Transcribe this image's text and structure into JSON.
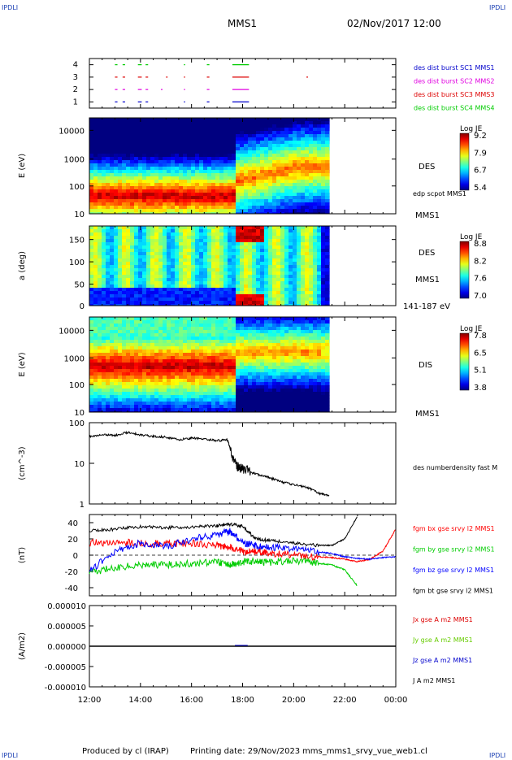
{
  "corner_label": "IPDLI",
  "header": {
    "spacecraft": "MMS1",
    "datetime": "02/Nov/2017 12:00"
  },
  "footer": {
    "produced_by": "Produced by cl (IRAP)",
    "printing_date": "Printing date: 29/Nov/2023",
    "product": "mms_mms1_srvy_vue_web1.cl"
  },
  "time_axis": {
    "ticks": [
      "12:00",
      "14:00",
      "16:00",
      "18:00",
      "20:00",
      "22:00",
      "00:00"
    ]
  },
  "colors": {
    "red": "#ff0000",
    "green": "#00dd00",
    "blue": "#0000ff",
    "magenta": "#e000e0",
    "black": "#000000"
  },
  "chart_data": [
    {
      "type": "scatter",
      "name": "burst",
      "yticks": [
        "1",
        "2",
        "3",
        "4"
      ],
      "legend": [
        {
          "label": "des dist burst SC1 MMS1",
          "color": "#0000cc",
          "track": 1
        },
        {
          "label": "des dist burst SC2 MMS2",
          "color": "#e000e0",
          "track": 2
        },
        {
          "label": "des dist burst SC3 MMS3",
          "color": "#dd0000",
          "track": 3
        },
        {
          "label": "des dist burst SC4 MMS4",
          "color": "#00cc00",
          "track": 4
        }
      ],
      "intervals_hours": [
        [
          13.0,
          13.1
        ],
        [
          13.3,
          13.4
        ],
        [
          13.9,
          14.05
        ],
        [
          14.2,
          14.3
        ],
        [
          15.7,
          15.75
        ],
        [
          16.6,
          16.7
        ],
        [
          17.6,
          18.25
        ]
      ],
      "extra_marks_hours": [
        [
          15.0,
          3
        ],
        [
          20.5,
          3
        ],
        [
          14.8,
          2
        ]
      ]
    },
    {
      "type": "heatmap",
      "name": "des-energy",
      "ylabel": "E (eV)",
      "yticks": [
        "10",
        "100",
        "1000",
        "10000"
      ],
      "right_labels": [
        "DES",
        "edp scpot MMS1",
        "MMS1"
      ],
      "colorbar": {
        "title": "Log JE",
        "ticks": [
          "9.2",
          "7.9",
          "6.7",
          "5.4"
        ]
      }
    },
    {
      "type": "heatmap",
      "name": "des-pitch",
      "ylabel": "a (deg)",
      "yticks": [
        "0",
        "50",
        "100",
        "150"
      ],
      "right_labels": [
        "DES",
        "MMS1",
        "141-187 eV"
      ],
      "colorbar": {
        "title": "Log JE",
        "ticks": [
          "8.8",
          "8.2",
          "7.6",
          "7.0"
        ]
      }
    },
    {
      "type": "heatmap",
      "name": "dis-energy",
      "ylabel": "E (eV)",
      "yticks": [
        "10",
        "100",
        "1000",
        "10000"
      ],
      "right_labels": [
        "DIS",
        "MMS1"
      ],
      "colorbar": {
        "title": "Log JE",
        "ticks": [
          "7.8",
          "6.5",
          "5.1",
          "3.8"
        ]
      }
    },
    {
      "type": "line",
      "name": "density",
      "ylabel": "(cm^-3)",
      "yticks": [
        "1",
        "10",
        "100"
      ],
      "ylim": [
        1,
        100
      ],
      "log": true,
      "legend": [
        {
          "label": "des numberdensity fast M",
          "color": "#000000"
        }
      ],
      "x": [
        12.0,
        12.5,
        13.0,
        13.5,
        14.0,
        14.5,
        15.0,
        15.5,
        16.0,
        16.5,
        17.0,
        17.4,
        17.6,
        17.8,
        18.0,
        18.5,
        19.0,
        19.5,
        20.0,
        20.5,
        21.0,
        21.4
      ],
      "y": [
        45,
        52,
        48,
        58,
        50,
        46,
        44,
        38,
        42,
        40,
        36,
        38,
        12,
        8,
        7,
        5.5,
        4.5,
        3.5,
        3.0,
        2.6,
        1.8,
        1.6
      ]
    },
    {
      "type": "line",
      "name": "magnetic-field",
      "ylabel": "(nT)",
      "yticks": [
        "-40",
        "-20",
        "0",
        "20",
        "40"
      ],
      "ylim": [
        -50,
        50
      ],
      "legend": [
        {
          "label": "fgm bx gse srvy l2 MMS1",
          "color": "#ff0000"
        },
        {
          "label": "fgm by gse srvy l2 MMS1",
          "color": "#00cc00"
        },
        {
          "label": "fgm bz gse srvy l2 MMS1",
          "color": "#0000ff"
        },
        {
          "label": "fgm bt gse srvy l2 MMS1",
          "color": "#000000"
        }
      ],
      "x": [
        12.0,
        13.0,
        14.0,
        15.0,
        16.0,
        17.0,
        17.5,
        18.0,
        18.5,
        19.0,
        20.0,
        21.0,
        21.5,
        22.0,
        22.5,
        23.0,
        23.5,
        24.0
      ],
      "series": [
        {
          "name": "bx",
          "values": [
            15,
            16,
            15,
            14,
            15,
            12,
            10,
            5,
            4,
            3,
            0,
            -2,
            -3,
            -5,
            -8,
            -5,
            5,
            32
          ]
        },
        {
          "name": "by",
          "values": [
            -22,
            -15,
            -12,
            -12,
            -10,
            -8,
            -12,
            -8,
            -8,
            -9,
            -6,
            -10,
            -12,
            -18,
            -38,
            null,
            null,
            null
          ]
        },
        {
          "name": "bz",
          "values": [
            -20,
            5,
            15,
            10,
            20,
            25,
            30,
            15,
            12,
            10,
            8,
            4,
            2,
            -2,
            -4,
            -5,
            -3,
            -2
          ]
        },
        {
          "name": "bt",
          "values": [
            30,
            32,
            35,
            34,
            35,
            36,
            38,
            36,
            20,
            18,
            15,
            12,
            12,
            20,
            48,
            null,
            null,
            null
          ]
        }
      ]
    },
    {
      "type": "line",
      "name": "current-density",
      "ylabel": "(A/m2)",
      "yticks": [
        "-0.000010",
        "-0.000005",
        "0.000000",
        "0.000005",
        "0.000010"
      ],
      "ylim": [
        -1e-05,
        1e-05
      ],
      "legend": [
        {
          "label": "Jx gse A m2 MMS1",
          "color": "#dd0000"
        },
        {
          "label": "Jy gse A m2 MMS1",
          "color": "#66cc00"
        },
        {
          "label": "Jz gse A m2 MMS1",
          "color": "#0000cc"
        },
        {
          "label": "J A m2 MMS1",
          "color": "#000000"
        }
      ],
      "x": [
        12.0,
        24.0
      ],
      "y": [
        0,
        0
      ]
    }
  ]
}
